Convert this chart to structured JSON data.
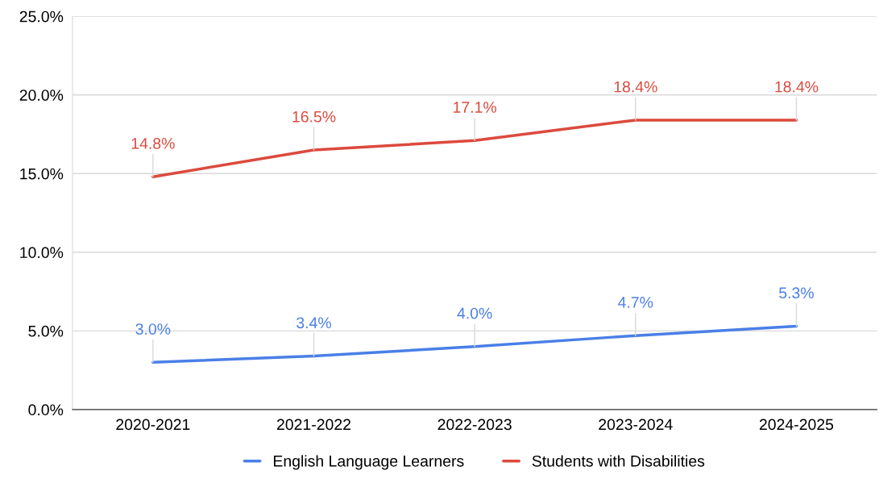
{
  "chart_data": {
    "type": "line",
    "categories": [
      "2020-2021",
      "2021-2022",
      "2022-2023",
      "2023-2024",
      "2024-2025"
    ],
    "series": [
      {
        "name": "English Language Learners",
        "color": "#4a7fe6",
        "values": [
          3.0,
          3.4,
          4.0,
          4.7,
          5.3
        ],
        "value_labels": [
          "3.0%",
          "3.4%",
          "4.0%",
          "4.7%",
          "5.3%"
        ]
      },
      {
        "name": "Students with Disabilities",
        "color": "#dc4a3d",
        "values": [
          14.8,
          16.5,
          17.1,
          18.4,
          18.4
        ],
        "value_labels": [
          "14.8%",
          "16.5%",
          "17.1%",
          "18.4%",
          "18.4%"
        ]
      }
    ],
    "ylim": [
      0,
      25
    ],
    "yticks": [
      {
        "value": 0,
        "label": "0.0%"
      },
      {
        "value": 5,
        "label": "5.0%"
      },
      {
        "value": 10,
        "label": "10.0%"
      },
      {
        "value": 15,
        "label": "15.0%"
      },
      {
        "value": 20,
        "label": "20.0%"
      },
      {
        "value": 25,
        "label": "25.0%"
      }
    ],
    "grid": "y",
    "legend": "bottom",
    "marker": "none",
    "line_style": "solid"
  }
}
